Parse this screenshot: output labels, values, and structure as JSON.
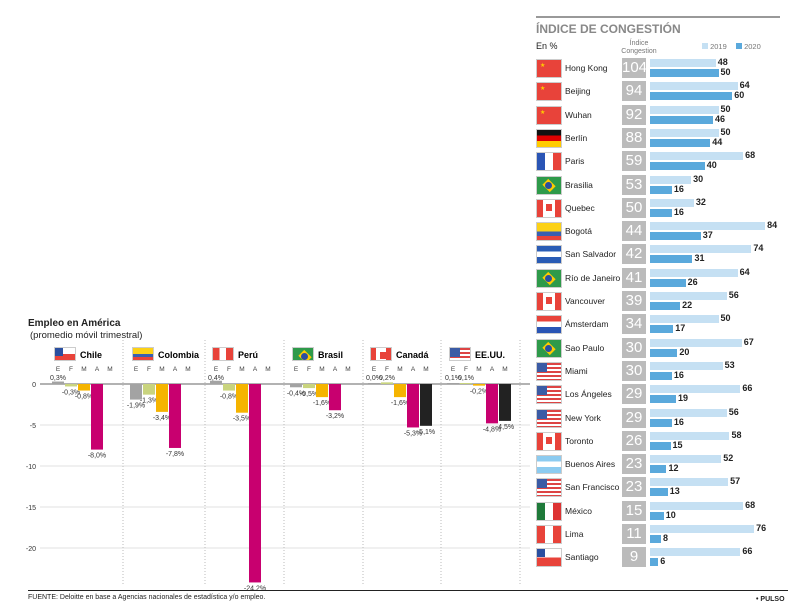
{
  "chart_data": {
    "type": "bar",
    "title": "Empleo en América",
    "subtitle": "(promedio móvil trimestral)",
    "months": [
      "E",
      "F",
      "M",
      "A",
      "M"
    ],
    "month_colors": [
      "#a3a3a3",
      "#c9d47e",
      "#f5b400",
      "#c8006f",
      "#222222"
    ],
    "yticks": [
      0,
      -5,
      -10,
      -15,
      -20
    ],
    "ylim": [
      -24.5,
      0.5
    ],
    "countries": [
      {
        "name": "Chile",
        "flag": "cl",
        "values": [
          0.3,
          -0.3,
          -0.8,
          -8.0
        ],
        "labels": [
          "0,3%",
          "-0,3%",
          "-0,8%",
          "-8,0%"
        ]
      },
      {
        "name": "Colombia",
        "flag": "co",
        "values": [
          -1.9,
          -1.3,
          -3.4,
          -7.8
        ],
        "labels": [
          "-1,9%",
          "-1,3%",
          "-3,4%",
          "-7,8%"
        ]
      },
      {
        "name": "Perú",
        "flag": "pe",
        "values": [
          0.4,
          -0.8,
          -3.5,
          -24.2
        ],
        "labels": [
          "0,4%",
          "-0,8%",
          "-3,5%",
          "-24,2%"
        ]
      },
      {
        "name": "Brasil",
        "flag": "br",
        "values": [
          -0.4,
          -0.5,
          -1.6,
          -3.2
        ],
        "labels": [
          "-0,4%",
          "-0,5%",
          "-1,6%",
          "-3,2%"
        ]
      },
      {
        "name": "Canadá",
        "flag": "ca",
        "values": [
          0.0,
          0.2,
          -1.6,
          -5.3,
          -5.1
        ],
        "labels": [
          "0,0%",
          "0,2%",
          "-1,6%",
          "-5,3%",
          "-5,1%"
        ]
      },
      {
        "name": "EE.UU.",
        "flag": "us",
        "values": [
          0.1,
          0.1,
          -0.2,
          -4.8,
          -4.5
        ],
        "labels": [
          "0,1%",
          "0,1%",
          "-0,2%",
          "-4,8%",
          "-4,5%"
        ]
      }
    ]
  },
  "congestion": {
    "title": "ÍNDICE DE CONGESTIÓN",
    "unit": "En %",
    "index_header": "Índice Congestion",
    "legend": [
      "2019",
      "2020"
    ],
    "colors": {
      "2019": "#c5e0f3",
      "2020": "#5aa9dc"
    },
    "rows": [
      {
        "city": "Hong Kong",
        "flag": "cn",
        "index": "104",
        "v2019": 48,
        "v2020": 50
      },
      {
        "city": "Beijing",
        "flag": "cn",
        "index": "94",
        "v2019": 64,
        "v2020": 60
      },
      {
        "city": "Wuhan",
        "flag": "cn",
        "index": "92",
        "v2019": 50,
        "v2020": 46
      },
      {
        "city": "Berlín",
        "flag": "de",
        "index": "88",
        "v2019": 50,
        "v2020": 44
      },
      {
        "city": "Paris",
        "flag": "fr",
        "index": "59",
        "v2019": 68,
        "v2020": 40
      },
      {
        "city": "Brasilia",
        "flag": "br",
        "index": "53",
        "v2019": 30,
        "v2020": 16
      },
      {
        "city": "Quebec",
        "flag": "ca",
        "index": "50",
        "v2019": 32,
        "v2020": 16
      },
      {
        "city": "Bogotá",
        "flag": "co",
        "index": "44",
        "v2019": 84,
        "v2020": 37
      },
      {
        "city": "San Salvador",
        "flag": "sv",
        "index": "42",
        "v2019": 74,
        "v2020": 31
      },
      {
        "city": "Río de Janeiro",
        "flag": "br",
        "index": "41",
        "v2019": 64,
        "v2020": 26
      },
      {
        "city": "Vancouver",
        "flag": "ca",
        "index": "39",
        "v2019": 56,
        "v2020": 22
      },
      {
        "city": "Ámsterdam",
        "flag": "nl",
        "index": "34",
        "v2019": 50,
        "v2020": 17
      },
      {
        "city": "Sao Paulo",
        "flag": "br",
        "index": "30",
        "v2019": 67,
        "v2020": 20
      },
      {
        "city": "Miami",
        "flag": "us",
        "index": "30",
        "v2019": 53,
        "v2020": 16
      },
      {
        "city": "Los Ángeles",
        "flag": "us",
        "index": "29",
        "v2019": 66,
        "v2020": 19
      },
      {
        "city": "New York",
        "flag": "us",
        "index": "29",
        "v2019": 56,
        "v2020": 16
      },
      {
        "city": "Toronto",
        "flag": "ca",
        "index": "26",
        "v2019": 58,
        "v2020": 15
      },
      {
        "city": "Buenos Aires",
        "flag": "ar",
        "index": "23",
        "v2019": 52,
        "v2020": 12
      },
      {
        "city": "San Francisco",
        "flag": "us",
        "index": "23",
        "v2019": 57,
        "v2020": 13
      },
      {
        "city": "México",
        "flag": "mx",
        "index": "15",
        "v2019": 68,
        "v2020": 10
      },
      {
        "city": "Lima",
        "flag": "pe",
        "index": "11",
        "v2019": 76,
        "v2020": 8
      },
      {
        "city": "Santiago",
        "flag": "cl",
        "index": "9",
        "v2019": 66,
        "v2020": 6
      }
    ]
  },
  "footer": {
    "source": "FUENTE: Deloitte en base a Agencias nacionales de estadística y/o empleo.",
    "brand": "• PULSO"
  }
}
